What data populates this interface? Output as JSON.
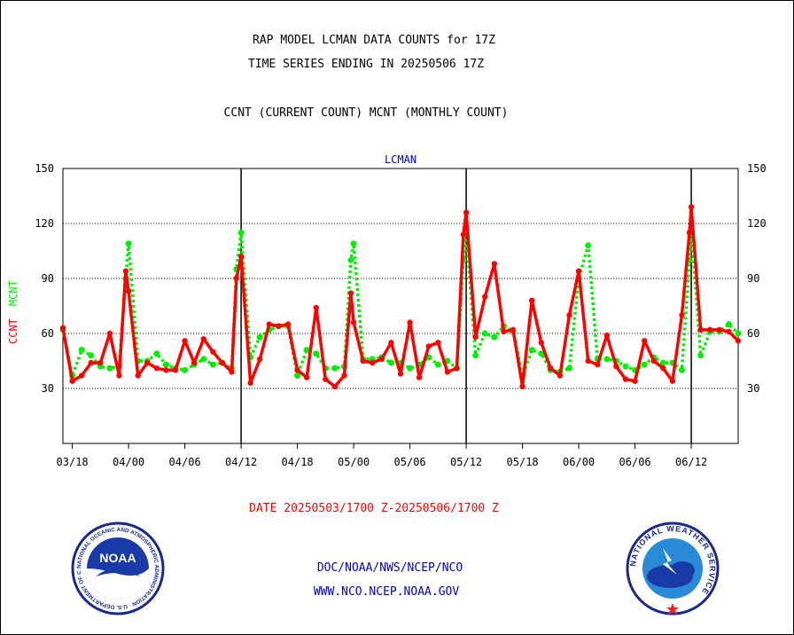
{
  "header": {
    "title_line1": "RAP MODEL LCMAN DATA COUNTS for 17Z",
    "title_line2": "TIME SERIES ENDING IN 20250506 17Z",
    "subtitle": "CCNT (CURRENT COUNT) MCNT (MONTHLY COUNT)"
  },
  "date_range": "DATE 20250503/1700 Z-20250506/1700 Z",
  "footer": {
    "line1": "DOC/NOAA/NWS/NCEP/NCO",
    "line2": "WWW.NCO.NCEP.NOAA.GOV"
  },
  "logos": {
    "noaa_text": "NOAA",
    "noaa_ring": "NATIONAL OCEANIC AND ATMOSPHERIC ADMINISTRATION · U.S. DEPARTMENT OF COMMERCE",
    "nws_ring": "NATIONAL WEATHER SERVICE"
  },
  "colors": {
    "ccnt": "#ff0000",
    "mcnt": "#00ee00",
    "title_blue": "#0000cc",
    "date_red": "#ff0000"
  },
  "chart_data": {
    "type": "line",
    "plot_title": "LCMAN",
    "ylabel_ccnt": "CCNT",
    "ylabel_mcnt": "MCNT",
    "ylim": [
      0,
      150
    ],
    "yticks": [
      30,
      60,
      90,
      120,
      150
    ],
    "x_tick_labels": [
      "03/18",
      "04/00",
      "04/06",
      "04/12",
      "04/18",
      "05/00",
      "05/06",
      "05/12",
      "05/18",
      "06/00",
      "06/06",
      "06/12"
    ],
    "x_tick_hours": [
      -54,
      -48,
      -42,
      -36,
      -30,
      -24,
      -18,
      -12,
      -6,
      0,
      6,
      12
    ],
    "x_range_hours": [
      -55,
      17
    ],
    "day_boundaries_hours": [
      -36,
      -12,
      12
    ],
    "grid": true,
    "series": [
      {
        "name": "CCNT",
        "x": [
          -55,
          -54,
          -53,
          -52,
          -51,
          -50,
          -49,
          -48.3,
          -48,
          -47,
          -46,
          -45,
          -44,
          -43,
          -42,
          -41,
          -40,
          -39,
          -38,
          -37,
          -36.5,
          -36,
          -35,
          -34,
          -33,
          -32,
          -31,
          -30,
          -29,
          -28,
          -27,
          -26,
          -25,
          -24.3,
          -24,
          -23,
          -22,
          -21,
          -20,
          -19,
          -18,
          -17,
          -16,
          -15,
          -14,
          -13,
          -12.3,
          -12,
          -11,
          -10,
          -9,
          -8,
          -7,
          -6,
          -5,
          -4,
          -3,
          -2,
          -1,
          0,
          1,
          2,
          3,
          4,
          5,
          6,
          7,
          8,
          9,
          10,
          11,
          11.8,
          12,
          13,
          14,
          15,
          16,
          17
        ],
        "values": [
          63,
          34,
          37,
          44,
          44,
          60,
          37,
          94,
          83,
          37,
          44,
          41,
          40,
          40,
          56,
          44,
          57,
          50,
          44,
          39,
          90,
          102,
          33,
          46,
          65,
          64,
          65,
          40,
          36,
          74,
          35,
          31,
          37,
          82,
          66,
          45,
          44,
          46,
          55,
          38,
          66,
          36,
          53,
          55,
          39,
          41,
          114,
          126,
          58,
          80,
          98,
          61,
          62,
          31,
          78,
          55,
          41,
          37,
          70,
          94,
          45,
          43,
          59,
          42,
          35,
          34,
          56,
          45,
          41,
          34,
          70,
          115,
          129,
          62,
          62,
          62,
          61,
          56
        ]
      },
      {
        "name": "MCNT",
        "x": [
          -55,
          -54,
          -53,
          -52,
          -51,
          -50,
          -49,
          -48.3,
          -48,
          -47,
          -46,
          -45,
          -44,
          -43,
          -42,
          -41,
          -40,
          -39,
          -38,
          -37,
          -36.5,
          -36,
          -35,
          -34,
          -33,
          -32,
          -31,
          -30,
          -29,
          -28,
          -27,
          -26,
          -25,
          -24.3,
          -24,
          -23,
          -22,
          -21,
          -20,
          -19,
          -18,
          -17,
          -16,
          -15,
          -14,
          -13,
          -12.3,
          -12,
          -11,
          -10,
          -9,
          -8,
          -7,
          -6,
          -5,
          -4,
          -3,
          -2,
          -1,
          0,
          1,
          2,
          3,
          4,
          5,
          6,
          7,
          8,
          9,
          10,
          11,
          11.8,
          12,
          13,
          14,
          15,
          16,
          17
        ],
        "values": [
          62,
          37,
          51,
          48,
          42,
          41,
          42,
          90,
          109,
          45,
          45,
          49,
          43,
          41,
          40,
          43,
          46,
          43,
          44,
          41,
          95,
          115,
          47,
          58,
          62,
          64,
          64,
          37,
          51,
          49,
          41,
          41,
          42,
          100,
          109,
          46,
          46,
          47,
          44,
          44,
          41,
          43,
          47,
          43,
          45,
          41,
          100,
          115,
          48,
          60,
          58,
          64,
          61,
          37,
          51,
          49,
          40,
          39,
          41,
          90,
          108,
          46,
          46,
          45,
          42,
          40,
          43,
          47,
          44,
          44,
          40,
          100,
          117,
          48,
          61,
          61,
          65,
          60
        ]
      }
    ]
  }
}
